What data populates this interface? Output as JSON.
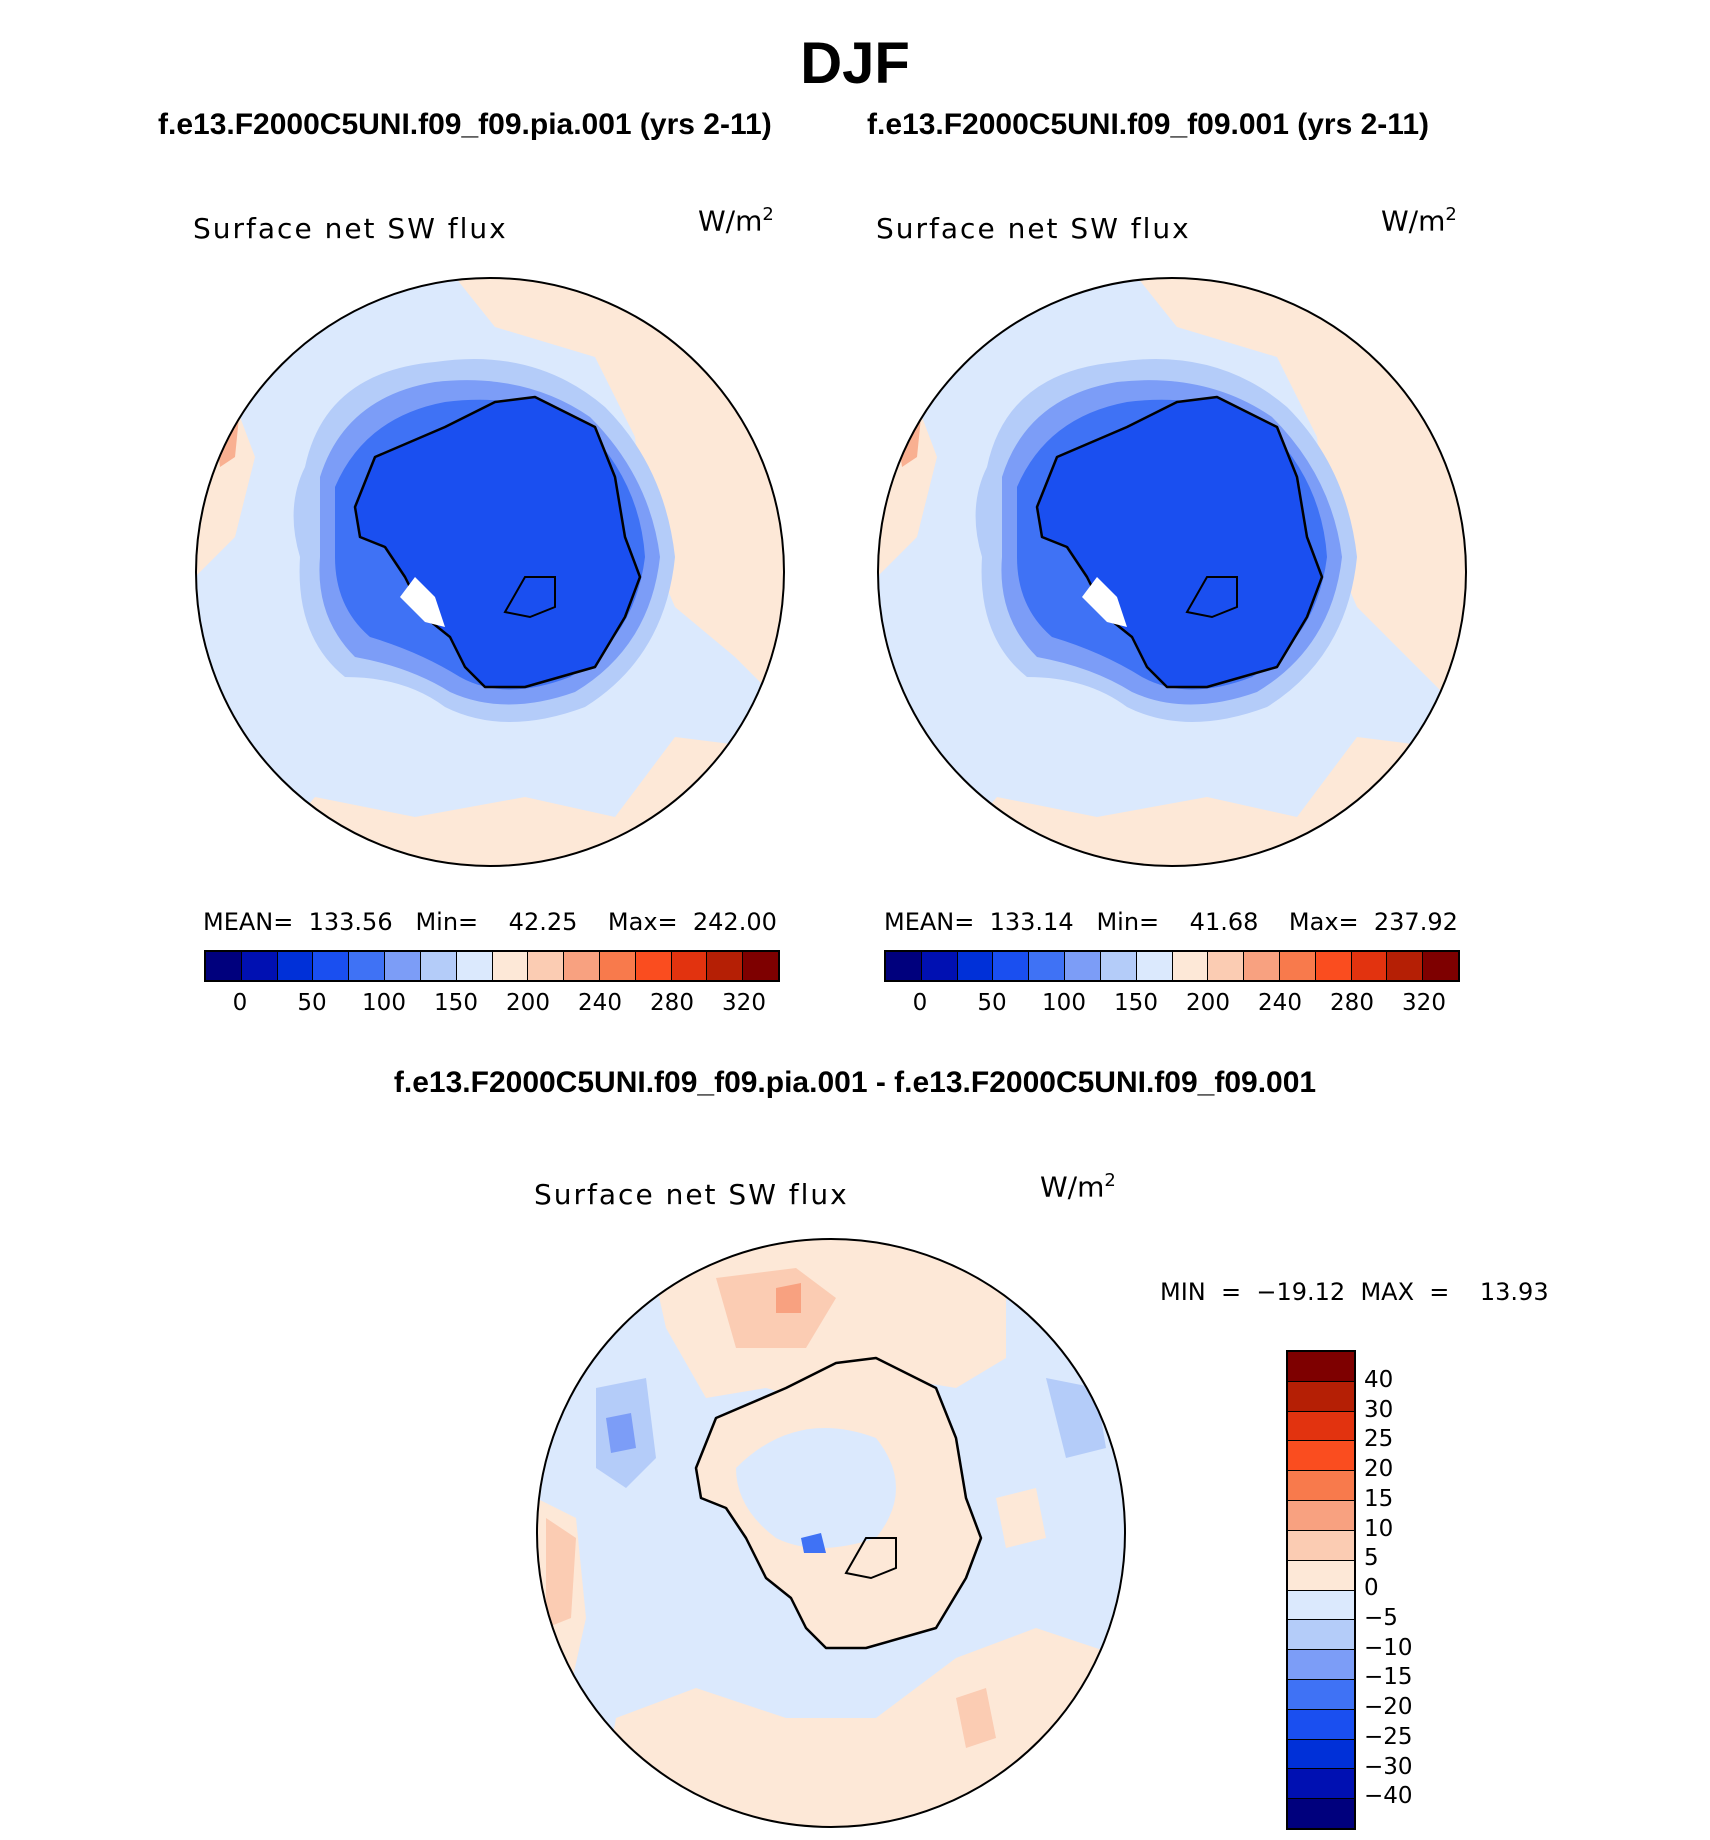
{
  "title": "DJF",
  "panels": [
    {
      "case": "f.e13.F2000C5UNI.f09_f09.pia.001 (yrs 2-11)",
      "variable": "Surface net SW flux",
      "units": "W/m",
      "units_sup": "2",
      "stats": "MEAN=  133.56   Min=    42.25    Max=  242.00"
    },
    {
      "case": "f.e13.F2000C5UNI.f09_f09.001 (yrs 2-11)",
      "variable": "Surface net SW flux",
      "units": "W/m",
      "units_sup": "2",
      "stats": "MEAN=  133.14   Min=    41.68    Max=  237.92"
    }
  ],
  "colorbar_abs": {
    "colors": [
      "#00007d",
      "#0010b2",
      "#0030d8",
      "#1a4ff0",
      "#3f72f5",
      "#7c9df7",
      "#b4ccf9",
      "#dbe9fd",
      "#fde8d7",
      "#fbccb3",
      "#f8a180",
      "#f87a4c",
      "#fa4d1f",
      "#e2330f",
      "#b51f05",
      "#7e0000"
    ],
    "ticks": [
      "0",
      "50",
      "100",
      "150",
      "200",
      "240",
      "280",
      "320"
    ]
  },
  "diff": {
    "title": "f.e13.F2000C5UNI.f09_f09.pia.001 - f.e13.F2000C5UNI.f09_f09.001",
    "variable": "Surface net SW flux",
    "units": "W/m",
    "units_sup": "2",
    "stats": "MIN  =  −19.12  MAX  =    13.93"
  },
  "colorbar_diff": {
    "colors": [
      "#7e0000",
      "#b51f05",
      "#e2330f",
      "#fa4d1f",
      "#f87a4c",
      "#f8a180",
      "#fbccb3",
      "#fde8d7",
      "#dbe9fd",
      "#b4ccf9",
      "#7c9df7",
      "#3f72f5",
      "#1a4ff0",
      "#0030d8",
      "#0010b2",
      "#00007d"
    ],
    "ticks": [
      "40",
      "30",
      "25",
      "20",
      "15",
      "10",
      "5",
      "0",
      "−5",
      "−10",
      "−15",
      "−20",
      "−25",
      "−30",
      "−40"
    ]
  }
}
